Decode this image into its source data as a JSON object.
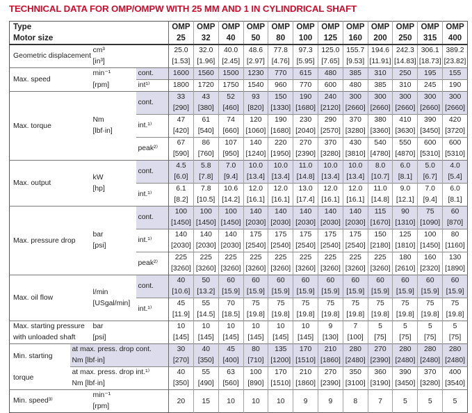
{
  "title": "TECHNICAL DATA FOR OMP/OMPW WITH 25 MM AND 1 IN CYLINDRICAL SHAFT",
  "colors": {
    "title": "#c8102e",
    "shade": "#dcdcec"
  },
  "header": {
    "type_label": "Type",
    "size_label": "Motor size",
    "types": [
      "OMP",
      "OMP",
      "OMP",
      "OMP",
      "OMP",
      "OMP",
      "OMP",
      "OMP",
      "OMP",
      "OMP",
      "OMP",
      "OMP"
    ],
    "sizes": [
      "25",
      "32",
      "40",
      "50",
      "80",
      "100",
      "125",
      "160",
      "200",
      "250",
      "315",
      "400"
    ]
  },
  "groups": [
    {
      "kind": "simple",
      "label": [
        "Geometric displacement"
      ],
      "units": [
        "cm³",
        "[in³]"
      ],
      "rows": [
        {
          "values": [
            "25.0",
            "32.0",
            "40.0",
            "48.6",
            "77.8",
            "97.3",
            "125.0",
            "155.7",
            "194.6",
            "242.3",
            "306.1",
            "389.2"
          ],
          "alt": [
            "[1.53]",
            "[1.96]",
            "[2.45]",
            "[2.97]",
            "[4.76]",
            "[5.95]",
            "[7.65]",
            "[9.53]",
            "[11.91]",
            "[14.83]",
            "[18.73]",
            "[23.82]"
          ]
        }
      ]
    },
    {
      "kind": "speed",
      "label": [
        "Max. speed"
      ],
      "units": [
        "min⁻¹",
        "[rpm]"
      ],
      "rows": [
        {
          "mode": "cont.",
          "shade": true,
          "values": [
            "1600",
            "1560",
            "1500",
            "1230",
            "770",
            "615",
            "480",
            "385",
            "310",
            "250",
            "195",
            "155"
          ]
        },
        {
          "mode": "int¹⁾",
          "values": [
            "1800",
            "1720",
            "1750",
            "1540",
            "960",
            "770",
            "600",
            "480",
            "385",
            "310",
            "245",
            "190"
          ]
        }
      ]
    },
    {
      "kind": "modes",
      "label": [
        "Max. torque"
      ],
      "units": [
        "Nm",
        "[lbf·in]"
      ],
      "rows": [
        {
          "mode": "cont.",
          "shade": true,
          "values": [
            "33",
            "43",
            "52",
            "93",
            "150",
            "190",
            "240",
            "300",
            "300",
            "300",
            "300",
            "300"
          ],
          "alt": [
            "[290]",
            "[380]",
            "[460]",
            "[820]",
            "[1330]",
            "[1680]",
            "[2120]",
            "[2660]",
            "[2660]",
            "[2660]",
            "[2660]",
            "[2660]"
          ]
        },
        {
          "mode": "int.¹⁾",
          "values": [
            "47",
            "61",
            "74",
            "120",
            "190",
            "230",
            "290",
            "370",
            "380",
            "410",
            "390",
            "420"
          ],
          "alt": [
            "[420]",
            "[540]",
            "[660]",
            "[1060]",
            "[1680]",
            "[2040]",
            "[2570]",
            "[3280]",
            "[3360]",
            "[3630]",
            "[3450]",
            "[3720]"
          ]
        },
        {
          "mode": "peak²⁾",
          "values": [
            "67",
            "86",
            "107",
            "140",
            "220",
            "270",
            "370",
            "430",
            "540",
            "550",
            "600",
            "600"
          ],
          "alt": [
            "[590]",
            "[760]",
            "[950]",
            "[1240]",
            "[1950]",
            "[2390]",
            "[3280]",
            "[3810]",
            "[4780]",
            "[4870]",
            "[5310]",
            "[5310]"
          ]
        }
      ]
    },
    {
      "kind": "modes",
      "label": [
        "Max. output"
      ],
      "units": [
        "kW",
        "[hp]"
      ],
      "rows": [
        {
          "mode": "cont.",
          "shade": true,
          "values": [
            "4.5",
            "5.8",
            "7.0",
            "10.0",
            "10.0",
            "11.0",
            "10.0",
            "10.0",
            "8.0",
            "6.0",
            "5.0",
            "4.0"
          ],
          "alt": [
            "[6.0]",
            "[7.8]",
            "[9.4]",
            "[13.4]",
            "[13.4]",
            "[14.8]",
            "[13.4]",
            "[13.4]",
            "[10.7]",
            "[8.1]",
            "[6.7]",
            "[5.4]"
          ]
        },
        {
          "mode": "int.¹⁾",
          "values": [
            "6.1",
            "7.8",
            "10.6",
            "12.0",
            "12.0",
            "13.0",
            "12.0",
            "12.0",
            "11.0",
            "9.0",
            "7.0",
            "6.0"
          ],
          "alt": [
            "[8.2]",
            "[10.5]",
            "[14.2]",
            "[16.1]",
            "[16.1]",
            "[17.4]",
            "[16.1]",
            "[16.1]",
            "[14.8]",
            "[12.1]",
            "[9.4]",
            "[8.1]"
          ]
        }
      ]
    },
    {
      "kind": "modes",
      "label": [
        "Max. pressure drop"
      ],
      "units": [
        "bar",
        "[psi]"
      ],
      "rows": [
        {
          "mode": "cont.",
          "shade": true,
          "values": [
            "100",
            "100",
            "100",
            "140",
            "140",
            "140",
            "140",
            "140",
            "115",
            "90",
            "75",
            "60"
          ],
          "alt": [
            "[1450]",
            "[1450]",
            "[1450]",
            "[2030]",
            "[2030]",
            "[2030]",
            "[2030]",
            "[2030]",
            "[1670]",
            "[1310]",
            "[1090]",
            "[870]"
          ]
        },
        {
          "mode": "int.¹⁾",
          "values": [
            "140",
            "140",
            "140",
            "175",
            "175",
            "175",
            "175",
            "175",
            "150",
            "125",
            "100",
            "80"
          ],
          "alt": [
            "[2030]",
            "[2030]",
            "[2030]",
            "[2540]",
            "[2540]",
            "[2540]",
            "[2540]",
            "[2540]",
            "[2180]",
            "[1810]",
            "[1450]",
            "[1160]"
          ]
        },
        {
          "mode": "peak²⁾",
          "values": [
            "225",
            "225",
            "225",
            "225",
            "225",
            "225",
            "225",
            "225",
            "225",
            "180",
            "160",
            "130"
          ],
          "alt": [
            "[3260]",
            "[3260]",
            "[3260]",
            "[3260]",
            "[3260]",
            "[3260]",
            "[3260]",
            "[3260]",
            "[3260]",
            "[2610]",
            "[2320]",
            "[1890]"
          ]
        }
      ]
    },
    {
      "kind": "modes",
      "label": [
        "Max. oil flow"
      ],
      "units": [
        "l/min",
        "[USgal/min]"
      ],
      "rows": [
        {
          "mode": "cont.",
          "shade": true,
          "values": [
            "40",
            "50",
            "60",
            "60",
            "60",
            "60",
            "60",
            "60",
            "60",
            "60",
            "60",
            "60"
          ],
          "alt": [
            "[10.6]",
            "[13.2]",
            "[15.9]",
            "[15.9]",
            "[15.9]",
            "[15.9]",
            "[15.9]",
            "[15.9]",
            "[15.9]",
            "[15.9]",
            "[15.9]",
            "[15.9]"
          ]
        },
        {
          "mode": "int.¹⁾",
          "values": [
            "45",
            "55",
            "70",
            "75",
            "75",
            "75",
            "75",
            "75",
            "75",
            "75",
            "75",
            "75"
          ],
          "alt": [
            "[11.9]",
            "[14.5]",
            "[18.5]",
            "[19.8]",
            "[19.8]",
            "[19.8]",
            "[19.8]",
            "[19.8]",
            "[19.8]",
            "[19.8]",
            "[19.8]",
            "[19.8]"
          ]
        }
      ]
    },
    {
      "kind": "simple",
      "label": [
        "Max. starting pressure",
        "with unloaded shaft"
      ],
      "units": [
        "bar",
        "[psi]"
      ],
      "rows": [
        {
          "values": [
            "10",
            "10",
            "10",
            "10",
            "10",
            "10",
            "9",
            "7",
            "5",
            "5",
            "5",
            "5"
          ],
          "alt": [
            "[145]",
            "[145]",
            "[145]",
            "[145]",
            "[145]",
            "[145]",
            "[130]",
            "[100]",
            "[75]",
            "[75]",
            "[75]",
            "[75]"
          ]
        }
      ]
    },
    {
      "kind": "starttorque",
      "label": [
        "Min. starting",
        "torque"
      ],
      "rows": [
        {
          "sub": [
            "at max. press. drop cont.",
            "Nm [lbf·in]"
          ],
          "shade": true,
          "values": [
            "30",
            "40",
            "45",
            "80",
            "135",
            "170",
            "210",
            "280",
            "270",
            "280",
            "280",
            "280"
          ],
          "alt": [
            "[270]",
            "[350]",
            "[400]",
            "[710]",
            "[1200]",
            "[1510]",
            "[1860]",
            "[2480]",
            "[2390]",
            "[2480]",
            "[2480]",
            "[2480]"
          ]
        },
        {
          "sub": [
            "at max. press. drop int.¹⁾",
            "Nm [lbf·in]"
          ],
          "values": [
            "40",
            "55",
            "63",
            "100",
            "170",
            "210",
            "270",
            "350",
            "360",
            "390",
            "370",
            "400"
          ],
          "alt": [
            "[350]",
            "[490]",
            "[560]",
            "[890]",
            "[1510]",
            "[1860]",
            "[2390]",
            "[3100]",
            "[3190]",
            "[3450]",
            "[3280]",
            "[3540]"
          ]
        }
      ]
    },
    {
      "kind": "single",
      "label": [
        "Min. speed³⁾"
      ],
      "units": [
        "min⁻¹",
        "[rpm]"
      ],
      "rows": [
        {
          "values": [
            "20",
            "15",
            "10",
            "10",
            "10",
            "9",
            "9",
            "8",
            "7",
            "5",
            "5",
            "5"
          ]
        }
      ]
    }
  ]
}
